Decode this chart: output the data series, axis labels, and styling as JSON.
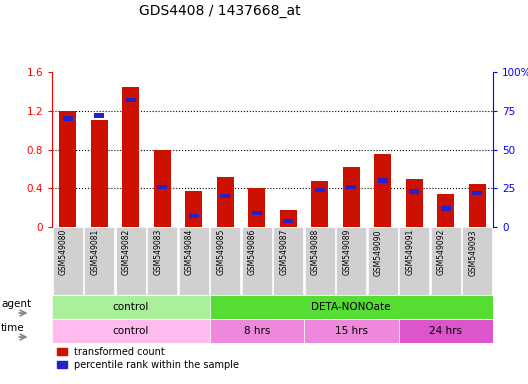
{
  "title": "GDS4408 / 1437668_at",
  "samples": [
    "GSM549080",
    "GSM549081",
    "GSM549082",
    "GSM549083",
    "GSM549084",
    "GSM549085",
    "GSM549086",
    "GSM549087",
    "GSM549088",
    "GSM549089",
    "GSM549090",
    "GSM549091",
    "GSM549092",
    "GSM549093"
  ],
  "red_values": [
    1.2,
    1.1,
    1.45,
    0.8,
    0.37,
    0.52,
    0.4,
    0.18,
    0.48,
    0.62,
    0.75,
    0.5,
    0.34,
    0.44
  ],
  "blue_values_pct": [
    70,
    72,
    82,
    26,
    7,
    20,
    9,
    4,
    24,
    26,
    30,
    23,
    12,
    22
  ],
  "ylim_left": [
    0,
    1.6
  ],
  "ylim_right": [
    0,
    100
  ],
  "yticks_left": [
    0,
    0.4,
    0.8,
    1.2,
    1.6
  ],
  "yticks_right": [
    0,
    25,
    50,
    75,
    100
  ],
  "ytick_labels_left": [
    "0",
    "0.4",
    "0.8",
    "1.2",
    "1.6"
  ],
  "ytick_labels_right": [
    "0",
    "25",
    "50",
    "75",
    "100%"
  ],
  "bar_color": "#cc1100",
  "blue_color": "#2222cc",
  "agent_groups": [
    {
      "label": "control",
      "start": 0,
      "end": 5,
      "color": "#aaf09a"
    },
    {
      "label": "DETA-NONOate",
      "start": 5,
      "end": 14,
      "color": "#55dd33"
    }
  ],
  "time_groups": [
    {
      "label": "control",
      "start": 0,
      "end": 5,
      "color": "#ffbbee"
    },
    {
      "label": "8 hrs",
      "start": 5,
      "end": 8,
      "color": "#ee88dd"
    },
    {
      "label": "15 hrs",
      "start": 8,
      "end": 11,
      "color": "#ee88dd"
    },
    {
      "label": "24 hrs",
      "start": 11,
      "end": 14,
      "color": "#dd55cc"
    }
  ],
  "legend_red": "transformed count",
  "legend_blue": "percentile rank within the sample",
  "bar_width": 0.55,
  "tick_bg_color": "#d0d0d0"
}
